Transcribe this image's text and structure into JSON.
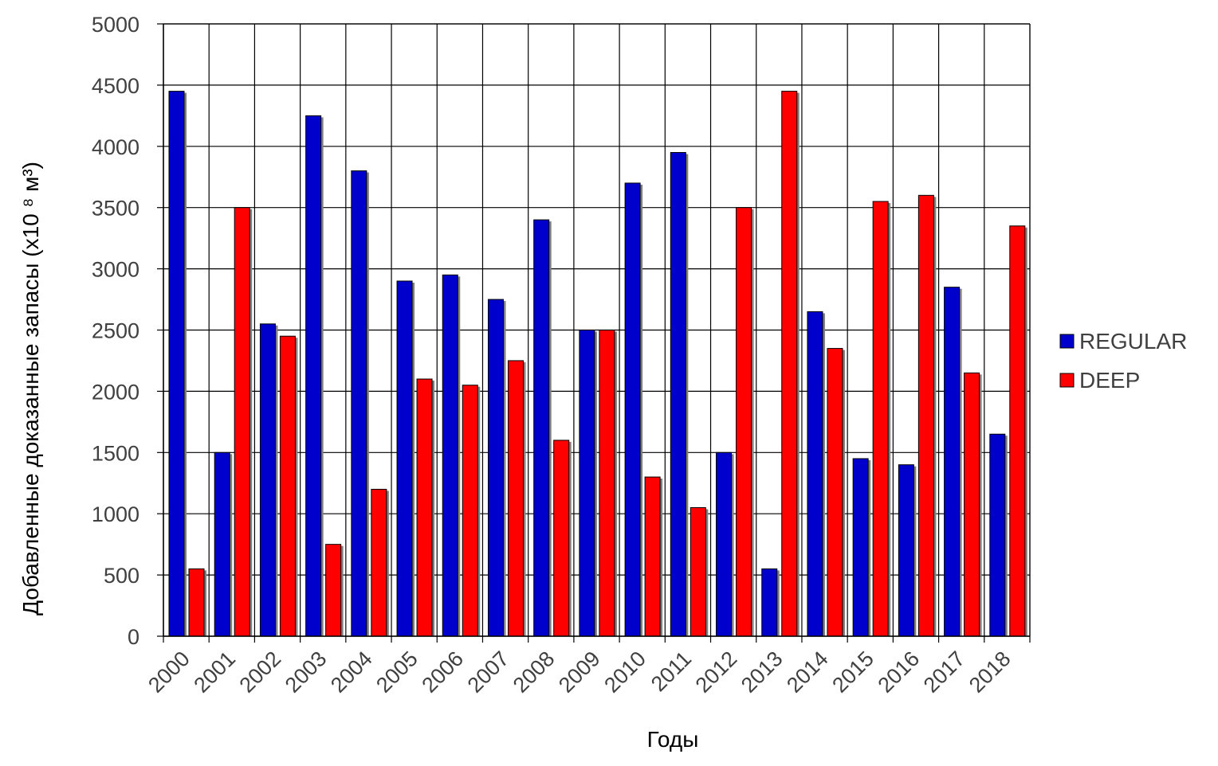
{
  "chart_data": {
    "type": "bar",
    "title": "",
    "xlabel": "Годы",
    "ylabel": "Добавленные доказанные запасы (x10 ⁸ м³)",
    "ylim": [
      0,
      5000
    ],
    "yticks": [
      "0",
      "500",
      "1000",
      "1500",
      "2000",
      "2500",
      "3000",
      "3500",
      "4000",
      "4500",
      "5000"
    ],
    "ytick_values": [
      0,
      500,
      1000,
      1500,
      2000,
      2500,
      3000,
      3500,
      4000,
      4500,
      5000
    ],
    "categories": [
      "2000",
      "2001",
      "2002",
      "2003",
      "2004",
      "2005",
      "2006",
      "2007",
      "2008",
      "2009",
      "2010",
      "2011",
      "2012",
      "2013",
      "2014",
      "2015",
      "2016",
      "2017",
      "2018"
    ],
    "series": [
      {
        "name": "REGULAR",
        "color": "#0000cc",
        "values": [
          4450,
          1500,
          2550,
          4250,
          3800,
          2900,
          2950,
          2750,
          3400,
          2500,
          3700,
          3950,
          1500,
          550,
          2650,
          1450,
          1400,
          2850,
          1650
        ]
      },
      {
        "name": "DEEP",
        "color": "#ff0000",
        "values": [
          550,
          3500,
          2450,
          750,
          1200,
          2100,
          2050,
          2250,
          1600,
          2500,
          1300,
          1050,
          3500,
          4450,
          2350,
          3550,
          3600,
          2150,
          3350
        ]
      }
    ],
    "grid": true,
    "legend_position": "right"
  }
}
